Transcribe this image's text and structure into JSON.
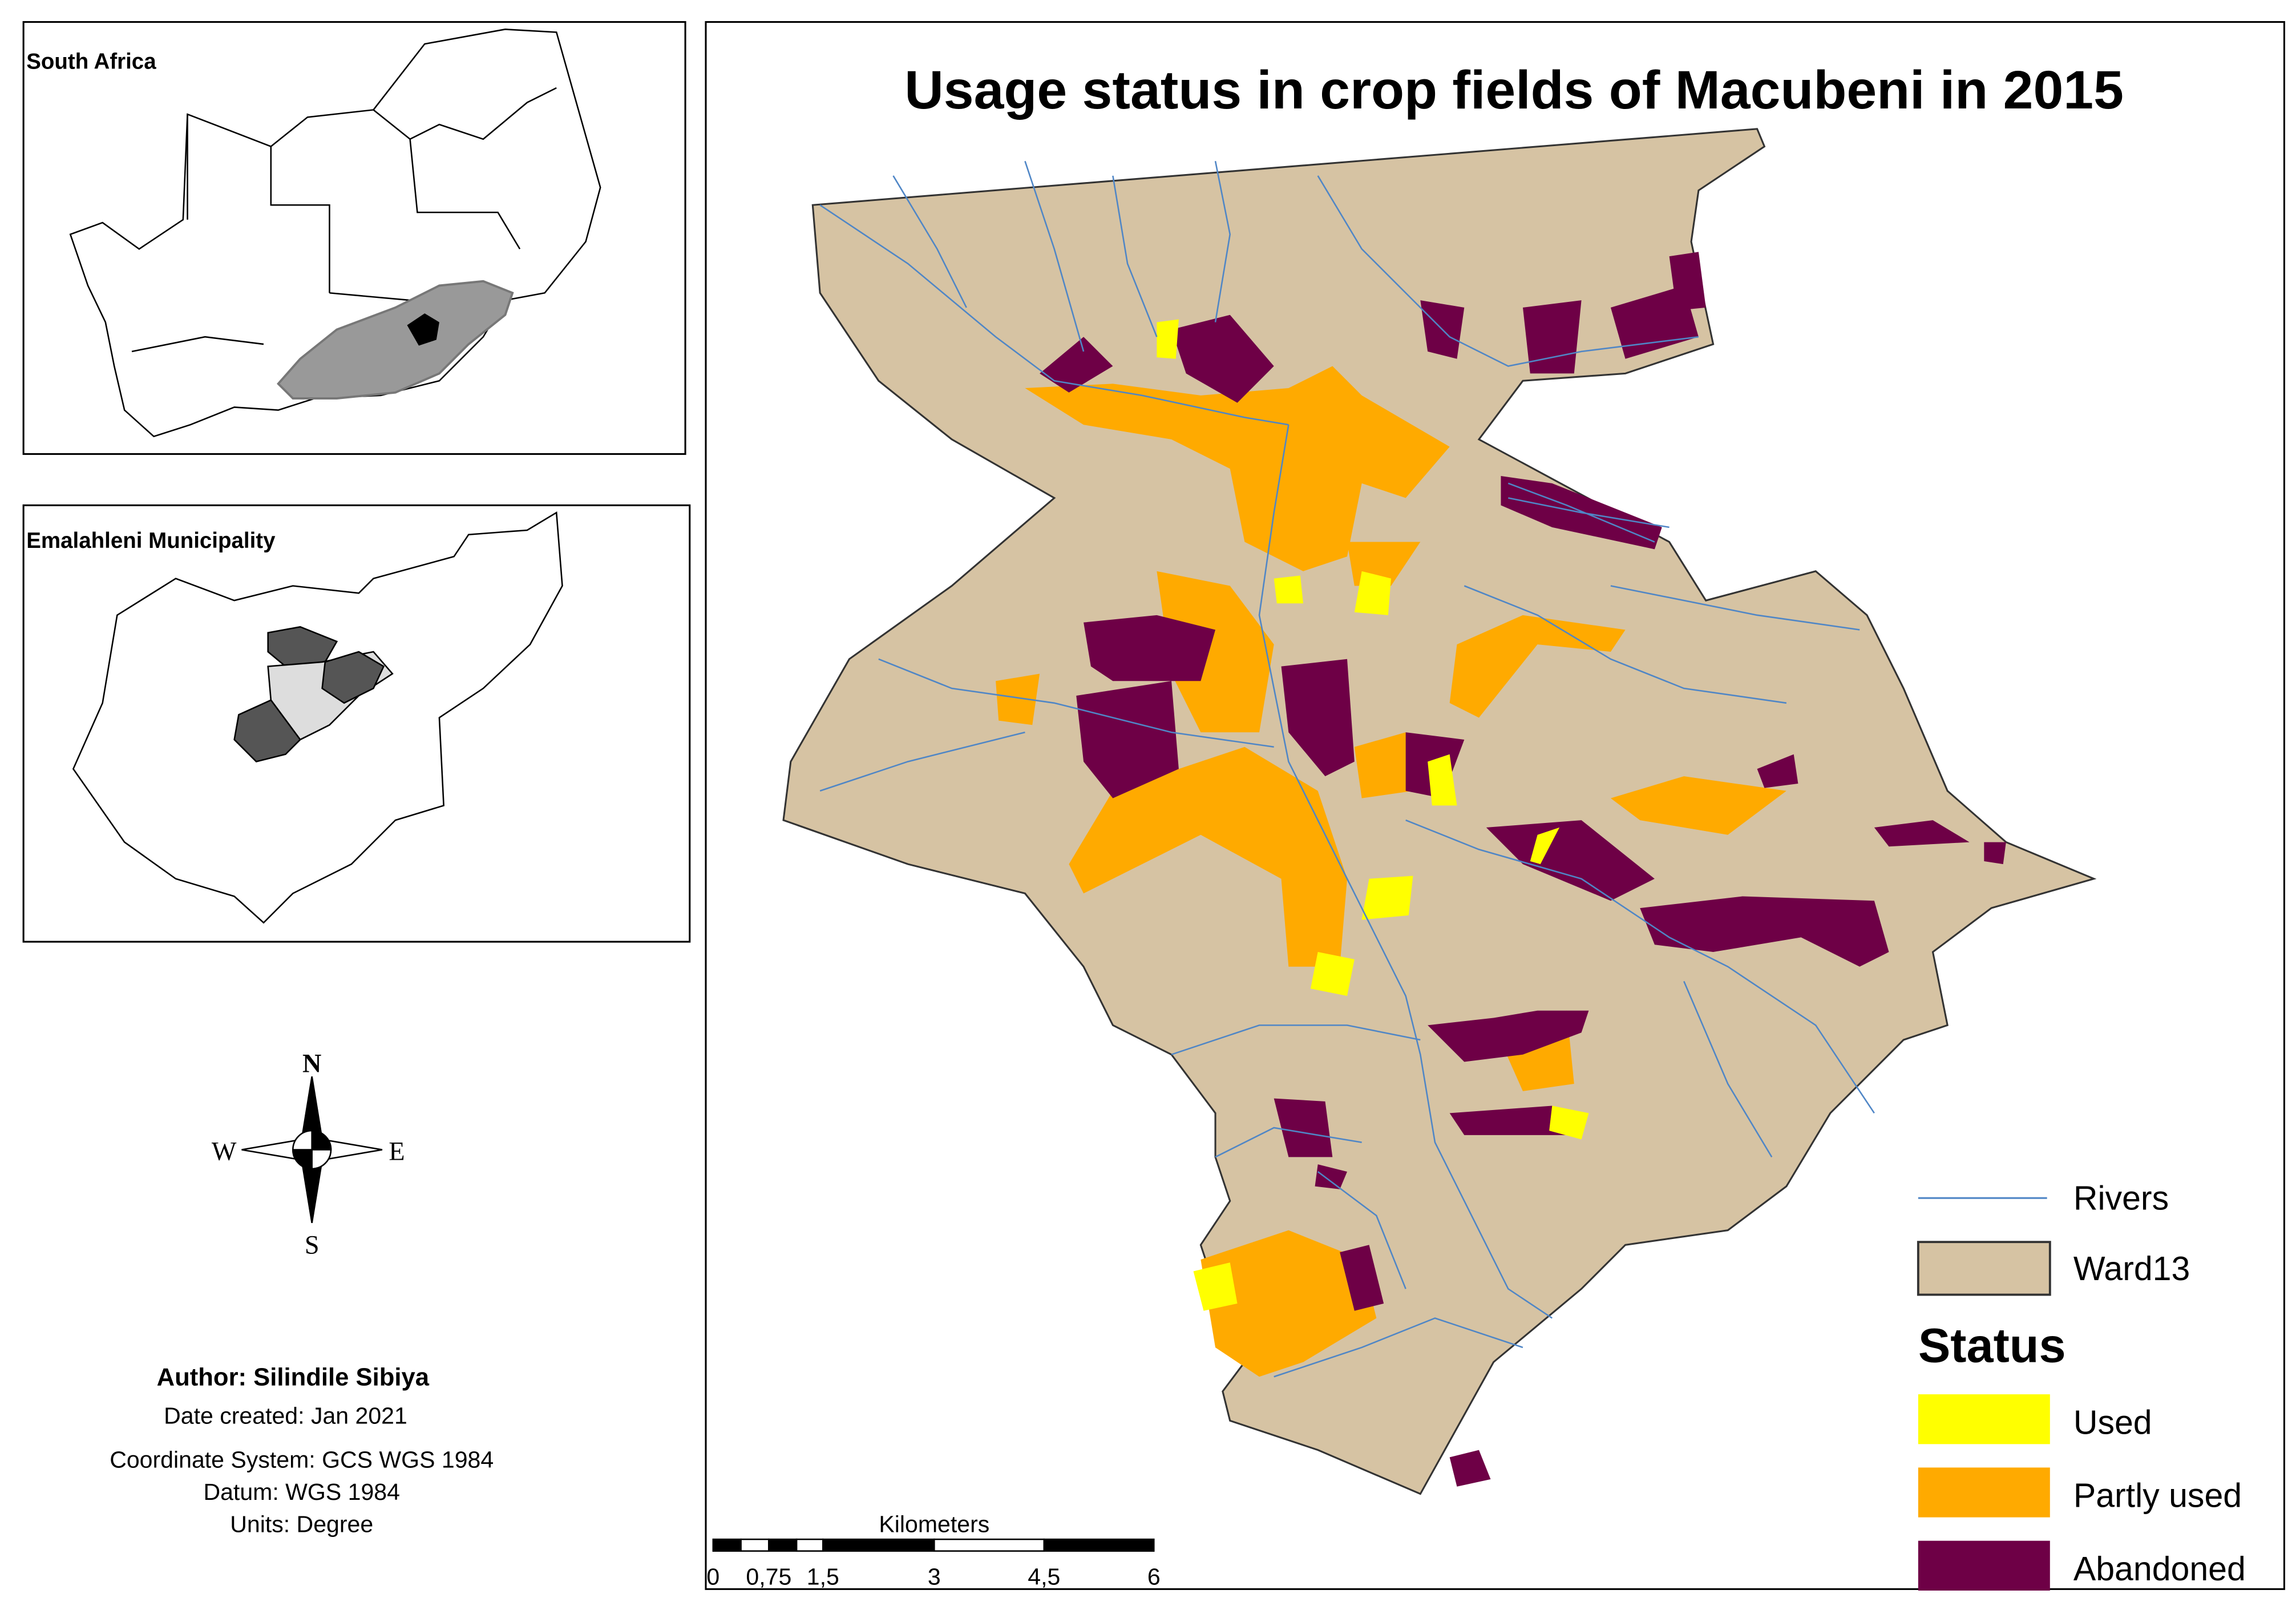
{
  "inset_south_africa": {
    "title": "South Africa"
  },
  "inset_municipality": {
    "title": "Emalahleni Municipality"
  },
  "map": {
    "title": "Usage status in crop fields of Macubeni in 2015",
    "legend": {
      "items": [
        {
          "label": "Rivers"
        },
        {
          "label": "Ward13"
        }
      ],
      "status_title": "Status",
      "status_items": [
        {
          "label": "Used",
          "color": "#ffff00"
        },
        {
          "label": "Partly used",
          "color": "#ffaa00"
        },
        {
          "label": "Abandoned",
          "color": "#6e0046"
        }
      ]
    },
    "scale_bar": {
      "unit": "Kilometers",
      "ticks": [
        "0",
        "0,75",
        "1,5",
        "3",
        "4,5",
        "6"
      ]
    }
  },
  "compass": {
    "north": "N",
    "west": "W",
    "east": "E",
    "south": "S"
  },
  "credits": {
    "author": "Author: Silindile Sibiya",
    "date": "Date created: Jan 2021",
    "coordinate_system": "Coordinate System: GCS WGS 1984",
    "datum": "Datum: WGS 1984",
    "units": "Units: Degree"
  }
}
